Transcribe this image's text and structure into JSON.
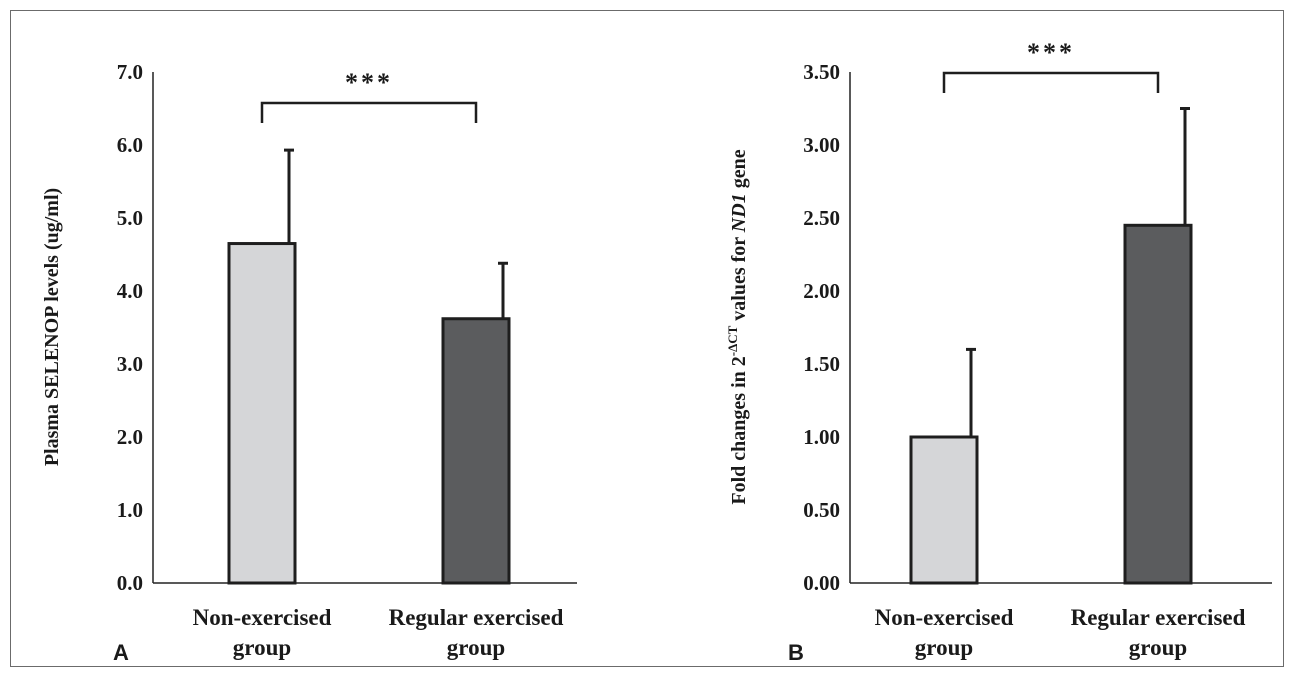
{
  "chart_data": [
    {
      "panel": "A",
      "type": "bar",
      "categories": [
        [
          "Non-exercised",
          "group"
        ],
        [
          "Regular exercised",
          "group"
        ]
      ],
      "values": [
        4.65,
        3.62
      ],
      "errors": [
        1.28,
        0.76
      ],
      "colors": [
        "#d5d6d8",
        "#5b5c5e"
      ],
      "ylabel": "Plasma SELENOP levels (ug/ml)",
      "ylim": [
        0,
        7
      ],
      "yticks": [
        "0.0",
        "1.0",
        "2.0",
        "3.0",
        "4.0",
        "5.0",
        "6.0",
        "7.0"
      ],
      "significance": "***",
      "grid": false,
      "legend": "none"
    },
    {
      "panel": "B",
      "type": "bar",
      "categories": [
        [
          "Non-exercised",
          "group"
        ],
        [
          "Regular exercised",
          "group"
        ]
      ],
      "values": [
        1.0,
        2.45
      ],
      "errors": [
        0.6,
        0.8
      ],
      "colors": [
        "#d5d6d8",
        "#5b5c5e"
      ],
      "ylabel": "Fold changes in 2^-ΔCT values for ND1 gene",
      "ylabel_parts": {
        "pre": "Fold changes in 2",
        "sup": "-ΔCT",
        "mid": " values for ",
        "ital": "ND1",
        "post": " gene"
      },
      "ylim": [
        0,
        3.5
      ],
      "yticks": [
        "0.00",
        "0.50",
        "1.00",
        "1.50",
        "2.00",
        "2.50",
        "3.00",
        "3.50"
      ],
      "significance": "***",
      "grid": false,
      "legend": "none"
    }
  ]
}
